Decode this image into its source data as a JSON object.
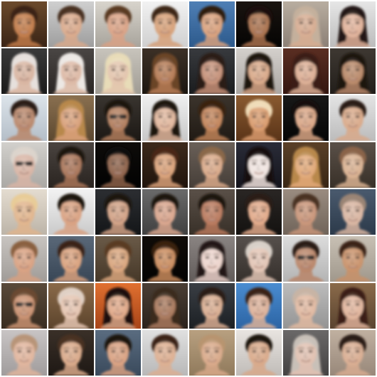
{
  "grid": {
    "rows": 8,
    "cols": 8,
    "border_color": "#ffffff",
    "tiles": [
      {
        "bg": "#6b4a2c",
        "bg2": "#3a2416",
        "skin": "#c07a48",
        "hair": "#3a2212",
        "style": "short",
        "glasses": false
      },
      {
        "bg": "#cfcfcf",
        "bg2": "#9e9e9e",
        "skin": "#d9a98b",
        "hair": "#4a3020",
        "style": "short",
        "glasses": false
      },
      {
        "bg": "#d8d4cc",
        "bg2": "#a8a49c",
        "skin": "#d9a184",
        "hair": "#5a3a22",
        "style": "short",
        "glasses": false
      },
      {
        "bg": "#f2f2f2",
        "bg2": "#d0d0d0",
        "skin": "#d6a078",
        "hair": "#3c2818",
        "style": "short",
        "glasses": false
      },
      {
        "bg": "#4f7fb5",
        "bg2": "#2d5a8c",
        "skin": "#d8a07c",
        "hair": "#2e1c10",
        "style": "short",
        "glasses": false
      },
      {
        "bg": "#1a1410",
        "bg2": "#050403",
        "skin": "#a8704c",
        "hair": "#1a0f08",
        "style": "short",
        "glasses": false
      },
      {
        "bg": "#b8ada0",
        "bg2": "#8c8076",
        "skin": "#d6ab90",
        "hair": "#c4b09c",
        "style": "long",
        "glasses": false
      },
      {
        "bg": "#e6e6e6",
        "bg2": "#bcbcbc",
        "skin": "#e0b29a",
        "hair": "#241812",
        "style": "long",
        "glasses": false
      },
      {
        "bg": "#3a3a3a",
        "bg2": "#1a1a1a",
        "skin": "#d8b4a0",
        "hair": "#e6e0dc",
        "style": "long",
        "glasses": false
      },
      {
        "bg": "#4a4644",
        "bg2": "#2a2624",
        "skin": "#dcb8a4",
        "hair": "#ece8e4",
        "style": "long",
        "glasses": false
      },
      {
        "bg": "#c8c4bc",
        "bg2": "#a09c94",
        "skin": "#e2c4ac",
        "hair": "#e8dcb8",
        "style": "long",
        "glasses": false
      },
      {
        "bg": "#3c3026",
        "bg2": "#1c1610",
        "skin": "#b47a54",
        "hair": "#6a4428",
        "style": "long",
        "glasses": false
      },
      {
        "bg": "#383a3e",
        "bg2": "#1a1c1e",
        "skin": "#c49078",
        "hair": "#2a1a14",
        "style": "long",
        "glasses": false
      },
      {
        "bg": "#d4d0cc",
        "bg2": "#aaa6a2",
        "skin": "#d8a888",
        "hair": "#1c1210",
        "style": "long",
        "glasses": false
      },
      {
        "bg": "#5a2e22",
        "bg2": "#341610",
        "skin": "#dcae94",
        "hair": "#3a1e14",
        "style": "long",
        "glasses": false
      },
      {
        "bg": "#3e3832",
        "bg2": "#221e1a",
        "skin": "#b88868",
        "hair": "#1a120e",
        "style": "long",
        "glasses": false
      },
      {
        "bg": "#dde4ea",
        "bg2": "#b4bec8",
        "skin": "#b8866a",
        "hair": "#2a1e18",
        "style": "short",
        "glasses": false
      },
      {
        "bg": "#8a7050",
        "bg2": "#5c4830",
        "skin": "#d8a07a",
        "hair": "#b8884c",
        "style": "long",
        "glasses": false
      },
      {
        "bg": "#3a3530",
        "bg2": "#1c1814",
        "skin": "#b07c5c",
        "hair": "#1a1410",
        "style": "short",
        "glasses": true
      },
      {
        "bg": "#f0f0f0",
        "bg2": "#c8c8c8",
        "skin": "#e0b69c",
        "hair": "#1e1410",
        "style": "long",
        "glasses": false
      },
      {
        "bg": "#3c342c",
        "bg2": "#201a14",
        "skin": "#c08258",
        "hair": "#3a2010",
        "style": "short",
        "glasses": false
      },
      {
        "bg": "#8a5a30",
        "bg2": "#5a3418",
        "skin": "#d89a6c",
        "hair": "#f0dcb8",
        "style": "short",
        "glasses": false
      },
      {
        "bg": "#181818",
        "bg2": "#050505",
        "skin": "#d8a484",
        "hair": "#120c08",
        "style": "short",
        "glasses": false
      },
      {
        "bg": "#e4e4e4",
        "bg2": "#bcbcbc",
        "skin": "#d8a888",
        "hair": "#2a1c14",
        "style": "short",
        "glasses": false
      },
      {
        "bg": "#d2d0cc",
        "bg2": "#aaa8a4",
        "skin": "#d8b4a4",
        "hair": "#dcd4cc",
        "style": "short",
        "glasses": true
      },
      {
        "bg": "#4a4440",
        "bg2": "#2a2420",
        "skin": "#a87458",
        "hair": "#1c1410",
        "style": "short",
        "glasses": false
      },
      {
        "bg": "#0e0c0a",
        "bg2": "#020202",
        "skin": "#8c6048",
        "hair": "#100a08",
        "style": "short",
        "glasses": false
      },
      {
        "bg": "#3c2a1c",
        "bg2": "#20140c",
        "skin": "#d8a078",
        "hair": "#4a2814",
        "style": "short",
        "glasses": false
      },
      {
        "bg": "#6a6058",
        "bg2": "#463e38",
        "skin": "#d8a888",
        "hair": "#8a6848",
        "style": "short",
        "glasses": false
      },
      {
        "bg": "#2a2c38",
        "bg2": "#14141c",
        "skin": "#f0e4e0",
        "hair": "#140c0c",
        "style": "long",
        "glasses": false
      },
      {
        "bg": "#5a4028",
        "bg2": "#382614",
        "skin": "#e0a878",
        "hair": "#b8884c",
        "style": "long",
        "glasses": false
      },
      {
        "bg": "#5a5048",
        "bg2": "#383028",
        "skin": "#d8b090",
        "hair": "#8a6448",
        "style": "short",
        "glasses": false
      },
      {
        "bg": "#e4dcd0",
        "bg2": "#bcb4a8",
        "skin": "#e0b48c",
        "hair": "#e8cc98",
        "style": "short",
        "glasses": false
      },
      {
        "bg": "#f2f2f2",
        "bg2": "#cacaca",
        "skin": "#d8a080",
        "hair": "#1c1410",
        "style": "short",
        "glasses": false
      },
      {
        "bg": "#2c2e32",
        "bg2": "#141618",
        "skin": "#d0a084",
        "hair": "#1a120e",
        "style": "short",
        "glasses": false
      },
      {
        "bg": "#6a6a6a",
        "bg2": "#404040",
        "skin": "#d8a48c",
        "hair": "#1c1410",
        "style": "short",
        "glasses": false
      },
      {
        "bg": "#5a5048",
        "bg2": "#383028",
        "skin": "#b8785c",
        "hair": "#1c1410",
        "style": "short",
        "glasses": false
      },
      {
        "bg": "#2a2624",
        "bg2": "#141210",
        "skin": "#e0a888",
        "hair": "#2a1a12",
        "style": "short",
        "glasses": false
      },
      {
        "bg": "#9a8c80",
        "bg2": "#70645a",
        "skin": "#c89478",
        "hair": "#4a3020",
        "style": "short",
        "glasses": false
      },
      {
        "bg": "#4a5a6e",
        "bg2": "#2c3a4a",
        "skin": "#d8b4a0",
        "hair": "#9a8474",
        "style": "short",
        "glasses": false
      },
      {
        "bg": "#c8c4c0",
        "bg2": "#a09c98",
        "skin": "#d8a080",
        "hair": "#8a6040",
        "style": "short",
        "glasses": false
      },
      {
        "bg": "#5a6878",
        "bg2": "#384656",
        "skin": "#d8a07c",
        "hair": "#3a2418",
        "style": "short",
        "glasses": false
      },
      {
        "bg": "#6a5a48",
        "bg2": "#463828",
        "skin": "#d8a47c",
        "hair": "#5a3a20",
        "style": "short",
        "glasses": false
      },
      {
        "bg": "#100c08",
        "bg2": "#040302",
        "skin": "#c88a5c",
        "hair": "#3a2010",
        "style": "short",
        "glasses": false
      },
      {
        "bg": "#8a8482",
        "bg2": "#625c5a",
        "skin": "#ecd4cc",
        "hair": "#241814",
        "style": "long",
        "glasses": false
      },
      {
        "bg": "#56504c",
        "bg2": "#36302c",
        "skin": "#e2c4b4",
        "hair": "#d8d0c8",
        "style": "short",
        "glasses": false
      },
      {
        "bg": "#dcdcdc",
        "bg2": "#b4b4b4",
        "skin": "#b88468",
        "hair": "#2a1e18",
        "style": "short",
        "glasses": true
      },
      {
        "bg": "#c8c0b4",
        "bg2": "#a0988c",
        "skin": "#c89068",
        "hair": "#3a2418",
        "style": "short",
        "glasses": false
      },
      {
        "bg": "#5a4a3a",
        "bg2": "#382c20",
        "skin": "#c89070",
        "hair": "#6a4a30",
        "style": "short",
        "glasses": true
      },
      {
        "bg": "#8a6a4a",
        "bg2": "#5c442c",
        "skin": "#e4c4b0",
        "hair": "#e0d0c4",
        "style": "short",
        "glasses": false
      },
      {
        "bg": "#e07030",
        "bg2": "#a84418",
        "skin": "#e0a888",
        "hair": "#1a0e08",
        "style": "long",
        "glasses": false
      },
      {
        "bg": "#4a3e34",
        "bg2": "#2a221c",
        "skin": "#a8785c",
        "hair": "#3a2a1c",
        "style": "long",
        "glasses": false
      },
      {
        "bg": "#3a3e44",
        "bg2": "#1c2024",
        "skin": "#d8ac90",
        "hair": "#2a1c14",
        "style": "short",
        "glasses": false
      },
      {
        "bg": "#4a8cd0",
        "bg2": "#2c64a4",
        "skin": "#dcb098",
        "hair": "#3a2418",
        "style": "short",
        "glasses": false
      },
      {
        "bg": "#bcbcbc",
        "bg2": "#949494",
        "skin": "#e0b8a0",
        "hair": "#c8b4a4",
        "style": "short",
        "glasses": false
      },
      {
        "bg": "#8a6a4a",
        "bg2": "#5a4430",
        "skin": "#e0b49c",
        "hair": "#3a1e12",
        "style": "long",
        "glasses": false
      },
      {
        "bg": "#c8c4c4",
        "bg2": "#a09c9c",
        "skin": "#e0b49c",
        "hair": "#b89478",
        "style": "short",
        "glasses": false
      },
      {
        "bg": "#3a3028",
        "bg2": "#1e1814",
        "skin": "#d8a888",
        "hair": "#4a3020",
        "style": "short",
        "glasses": false
      },
      {
        "bg": "#5a6c80",
        "bg2": "#3a4a5c",
        "skin": "#d8a080",
        "hair": "#1a120c",
        "style": "short",
        "glasses": false
      },
      {
        "bg": "#e0e0e0",
        "bg2": "#b8b8b8",
        "skin": "#dcae90",
        "hair": "#3a2418",
        "style": "short",
        "glasses": false
      },
      {
        "bg": "#b8a080",
        "bg2": "#907a5c",
        "skin": "#d8a888",
        "hair": "#b89470",
        "style": "short",
        "glasses": false
      },
      {
        "bg": "#e8e4e0",
        "bg2": "#c0bcb8",
        "skin": "#d8a888",
        "hair": "#1c1410",
        "style": "short",
        "glasses": false
      },
      {
        "bg": "#6a6868",
        "bg2": "#444242",
        "skin": "#e0c0b0",
        "hair": "#c8c0b8",
        "style": "long",
        "glasses": false
      },
      {
        "bg": "#c0b0a0",
        "bg2": "#98887a",
        "skin": "#d8ac90",
        "hair": "#2a1a12",
        "style": "short",
        "glasses": false
      }
    ]
  }
}
